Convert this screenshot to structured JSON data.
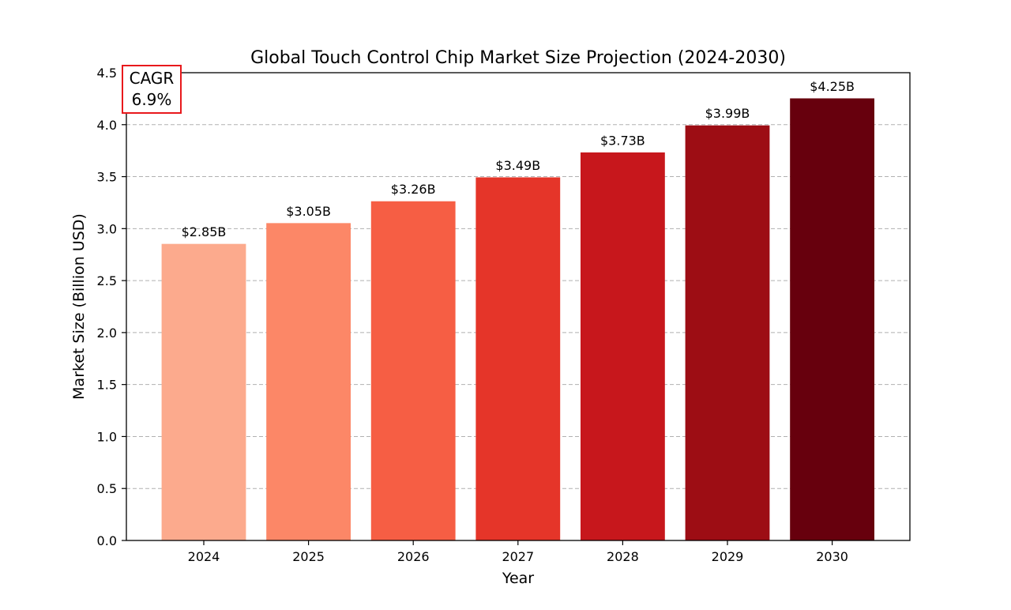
{
  "chart_data": {
    "type": "bar",
    "title": "Global Touch Control Chip Market Size Projection (2024-2030)",
    "xlabel": "Year",
    "ylabel": "Market Size (Billion USD)",
    "categories": [
      "2024",
      "2025",
      "2026",
      "2027",
      "2028",
      "2029",
      "2030"
    ],
    "values": [
      2.85,
      3.05,
      3.26,
      3.49,
      3.73,
      3.99,
      4.25
    ],
    "value_labels": [
      "$2.85B",
      "$3.05B",
      "$3.26B",
      "$3.49B",
      "$3.73B",
      "$3.99B",
      "$4.25B"
    ],
    "bar_colors": [
      "#fcaa8d",
      "#fc8767",
      "#f65e44",
      "#e53529",
      "#c7171c",
      "#9d0d14",
      "#67000d"
    ],
    "ylim": [
      0,
      4.5
    ],
    "yticks": [
      0.0,
      0.5,
      1.0,
      1.5,
      2.0,
      2.5,
      3.0,
      3.5,
      4.0,
      4.5
    ],
    "ytick_labels": [
      "0.0",
      "0.5",
      "1.0",
      "1.5",
      "2.0",
      "2.5",
      "3.0",
      "3.5",
      "4.0",
      "4.5"
    ],
    "grid": "horizontal-dashed",
    "annotation": {
      "line1": "CAGR",
      "line2": "6.9%",
      "position": "top-left",
      "border_color": "#e8191c"
    }
  }
}
